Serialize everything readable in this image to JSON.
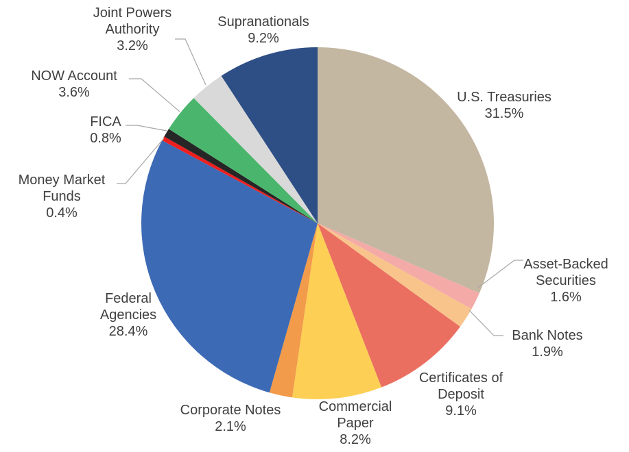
{
  "chart_data": {
    "type": "pie",
    "title": "",
    "start_angle_deg": 0,
    "direction": "clockwise",
    "slices": [
      {
        "label": "U.S. Treasuries",
        "label_lines": [
          "U.S. Treasuries"
        ],
        "value": 31.5,
        "value_label": "31.5%",
        "color": "#c4b7a2"
      },
      {
        "label": "Asset-Backed Securities",
        "label_lines": [
          "Asset-Backed",
          "Securities"
        ],
        "value": 1.6,
        "value_label": "1.6%",
        "color": "#f4aaa6"
      },
      {
        "label": "Bank Notes",
        "label_lines": [
          "Bank Notes"
        ],
        "value": 1.9,
        "value_label": "1.9%",
        "color": "#f8c48c"
      },
      {
        "label": "Certificates of Deposit",
        "label_lines": [
          "Certificates of",
          "Deposit"
        ],
        "value": 9.1,
        "value_label": "9.1%",
        "color": "#ea6f61"
      },
      {
        "label": "Commercial Paper",
        "label_lines": [
          "Commercial",
          "Paper"
        ],
        "value": 8.2,
        "value_label": "8.2%",
        "color": "#fdcf55"
      },
      {
        "label": "Corporate Notes",
        "label_lines": [
          "Corporate Notes"
        ],
        "value": 2.1,
        "value_label": "2.1%",
        "color": "#f29b4a"
      },
      {
        "label": "Federal Agencies",
        "label_lines": [
          "Federal",
          "Agencies"
        ],
        "value": 28.4,
        "value_label": "28.4%",
        "color": "#3d6ab5"
      },
      {
        "label": "Money Market Funds",
        "label_lines": [
          "Money Market",
          "Funds"
        ],
        "value": 0.4,
        "value_label": "0.4%",
        "color": "#ee1f1f"
      },
      {
        "label": "FICA",
        "label_lines": [
          "FICA"
        ],
        "value": 0.8,
        "value_label": "0.8%",
        "color": "#262626"
      },
      {
        "label": "NOW Account",
        "label_lines": [
          "NOW Account"
        ],
        "value": 3.6,
        "value_label": "3.6%",
        "color": "#4ab66d"
      },
      {
        "label": "Joint Powers Authority",
        "label_lines": [
          "Joint Powers",
          "Authority"
        ],
        "value": 3.2,
        "value_label": "3.2%",
        "color": "#d9d9d9"
      },
      {
        "label": "Supranationals",
        "label_lines": [
          "Supranationals"
        ],
        "value": 9.2,
        "value_label": "9.2%",
        "color": "#2e4f85"
      }
    ]
  }
}
